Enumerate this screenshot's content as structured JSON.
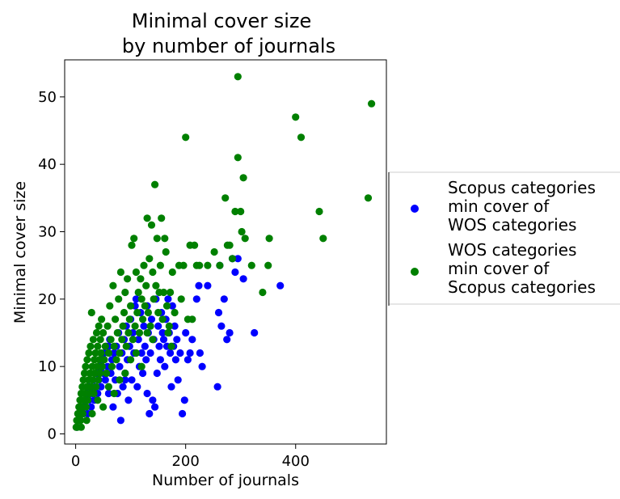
{
  "chart_data": {
    "type": "scatter",
    "title_lines": [
      "Minimal cover size",
      "by number of journals"
    ],
    "xlabel": "Number of journals",
    "ylabel": "Minimal cover size",
    "xlim": [
      -20,
      565
    ],
    "ylim": [
      -1.5,
      55.5
    ],
    "xticks": [
      0,
      200,
      400
    ],
    "yticks": [
      0,
      10,
      20,
      30,
      40,
      50
    ],
    "grid": false,
    "legend_position": "right-outside",
    "series": [
      {
        "name_lines": [
          "Scopus categories",
          "min cover of",
          "WOS categories"
        ],
        "color": "#0000ff",
        "points": [
          [
            2,
            1
          ],
          [
            4,
            2
          ],
          [
            6,
            3
          ],
          [
            8,
            2
          ],
          [
            10,
            3
          ],
          [
            12,
            4
          ],
          [
            14,
            3
          ],
          [
            16,
            5
          ],
          [
            18,
            4
          ],
          [
            20,
            6
          ],
          [
            22,
            3
          ],
          [
            24,
            5
          ],
          [
            26,
            7
          ],
          [
            28,
            4
          ],
          [
            30,
            6
          ],
          [
            32,
            8
          ],
          [
            34,
            5
          ],
          [
            36,
            7
          ],
          [
            38,
            9
          ],
          [
            40,
            6
          ],
          [
            42,
            8
          ],
          [
            44,
            10
          ],
          [
            46,
            7
          ],
          [
            48,
            11
          ],
          [
            50,
            9
          ],
          [
            52,
            12
          ],
          [
            54,
            8
          ],
          [
            56,
            13
          ],
          [
            58,
            10
          ],
          [
            60,
            6
          ],
          [
            62,
            14
          ],
          [
            64,
            9
          ],
          [
            66,
            11
          ],
          [
            68,
            4
          ],
          [
            70,
            12
          ],
          [
            72,
            8
          ],
          [
            74,
            13
          ],
          [
            76,
            6
          ],
          [
            78,
            15
          ],
          [
            80,
            10
          ],
          [
            82,
            2
          ],
          [
            84,
            12
          ],
          [
            86,
            7
          ],
          [
            88,
            14
          ],
          [
            90,
            9
          ],
          [
            92,
            16
          ],
          [
            94,
            11
          ],
          [
            96,
            5
          ],
          [
            98,
            13
          ],
          [
            100,
            17
          ],
          [
            102,
            8
          ],
          [
            104,
            15
          ],
          [
            106,
            12
          ],
          [
            108,
            19
          ],
          [
            110,
            20
          ],
          [
            112,
            7
          ],
          [
            114,
            14
          ],
          [
            116,
            10
          ],
          [
            118,
            18
          ],
          [
            120,
            12
          ],
          [
            122,
            9
          ],
          [
            124,
            16
          ],
          [
            126,
            13
          ],
          [
            128,
            11
          ],
          [
            130,
            19
          ],
          [
            132,
            15
          ],
          [
            134,
            3
          ],
          [
            136,
            12
          ],
          [
            138,
            17
          ],
          [
            140,
            5
          ],
          [
            142,
            14
          ],
          [
            144,
            4
          ],
          [
            146,
            20
          ],
          [
            148,
            9
          ],
          [
            150,
            16
          ],
          [
            152,
            13
          ],
          [
            154,
            11
          ],
          [
            156,
            18
          ],
          [
            158,
            15
          ],
          [
            160,
            14
          ],
          [
            162,
            10
          ],
          [
            164,
            17
          ],
          [
            166,
            13
          ],
          [
            168,
            20
          ],
          [
            170,
            15
          ],
          [
            172,
            12
          ],
          [
            174,
            7
          ],
          [
            176,
            19
          ],
          [
            178,
            13
          ],
          [
            180,
            16
          ],
          [
            182,
            11
          ],
          [
            184,
            14
          ],
          [
            186,
            8
          ],
          [
            190,
            12
          ],
          [
            194,
            3
          ],
          [
            198,
            5
          ],
          [
            200,
            15
          ],
          [
            204,
            11
          ],
          [
            208,
            12
          ],
          [
            212,
            14
          ],
          [
            220,
            20
          ],
          [
            224,
            22
          ],
          [
            226,
            12
          ],
          [
            230,
            10
          ],
          [
            240,
            22
          ],
          [
            258,
            7
          ],
          [
            260,
            18
          ],
          [
            262,
            25
          ],
          [
            265,
            16
          ],
          [
            270,
            20
          ],
          [
            275,
            14
          ],
          [
            280,
            15
          ],
          [
            285,
            26
          ],
          [
            290,
            24
          ],
          [
            295,
            26
          ],
          [
            305,
            23
          ],
          [
            325,
            15
          ],
          [
            372,
            22
          ],
          [
            60,
            13
          ],
          [
            90,
            8
          ],
          [
            130,
            6
          ]
        ]
      },
      {
        "name_lines": [
          "WOS categories",
          "min cover of",
          "Scopus categories"
        ],
        "color": "#008000",
        "points": [
          [
            1,
            1
          ],
          [
            2,
            2
          ],
          [
            3,
            1
          ],
          [
            4,
            3
          ],
          [
            5,
            2
          ],
          [
            6,
            4
          ],
          [
            7,
            3
          ],
          [
            8,
            5
          ],
          [
            9,
            2
          ],
          [
            10,
            6
          ],
          [
            11,
            4
          ],
          [
            12,
            7
          ],
          [
            13,
            3
          ],
          [
            14,
            8
          ],
          [
            15,
            5
          ],
          [
            16,
            9
          ],
          [
            17,
            6
          ],
          [
            18,
            10
          ],
          [
            19,
            4
          ],
          [
            20,
            7
          ],
          [
            21,
            11
          ],
          [
            22,
            5
          ],
          [
            23,
            8
          ],
          [
            24,
            12
          ],
          [
            25,
            6
          ],
          [
            26,
            9
          ],
          [
            27,
            13
          ],
          [
            28,
            7
          ],
          [
            29,
            18
          ],
          [
            30,
            10
          ],
          [
            31,
            8
          ],
          [
            32,
            14
          ],
          [
            33,
            6
          ],
          [
            34,
            11
          ],
          [
            35,
            9
          ],
          [
            36,
            12
          ],
          [
            37,
            7
          ],
          [
            38,
            15
          ],
          [
            39,
            10
          ],
          [
            40,
            13
          ],
          [
            41,
            8
          ],
          [
            42,
            16
          ],
          [
            43,
            11
          ],
          [
            44,
            9
          ],
          [
            45,
            14
          ],
          [
            46,
            12
          ],
          [
            47,
            17
          ],
          [
            48,
            10
          ],
          [
            50,
            15
          ],
          [
            52,
            11
          ],
          [
            54,
            13
          ],
          [
            56,
            9
          ],
          [
            58,
            16
          ],
          [
            60,
            12
          ],
          [
            62,
            19
          ],
          [
            64,
            14
          ],
          [
            66,
            10
          ],
          [
            68,
            22
          ],
          [
            70,
            13
          ],
          [
            72,
            17
          ],
          [
            74,
            11
          ],
          [
            76,
            15
          ],
          [
            78,
            20
          ],
          [
            80,
            12
          ],
          [
            82,
            24
          ],
          [
            84,
            14
          ],
          [
            86,
            16
          ],
          [
            88,
            18
          ],
          [
            90,
            21
          ],
          [
            92,
            13
          ],
          [
            94,
            23
          ],
          [
            96,
            15
          ],
          [
            98,
            17
          ],
          [
            100,
            19
          ],
          [
            102,
            28
          ],
          [
            104,
            14
          ],
          [
            106,
            29
          ],
          [
            108,
            16
          ],
          [
            110,
            24
          ],
          [
            112,
            18
          ],
          [
            114,
            21
          ],
          [
            116,
            15
          ],
          [
            118,
            23
          ],
          [
            120,
            20
          ],
          [
            122,
            17
          ],
          [
            124,
            25
          ],
          [
            126,
            19
          ],
          [
            128,
            22
          ],
          [
            130,
            32
          ],
          [
            132,
            18
          ],
          [
            134,
            26
          ],
          [
            136,
            16
          ],
          [
            138,
            31
          ],
          [
            140,
            24
          ],
          [
            142,
            20
          ],
          [
            144,
            37
          ],
          [
            146,
            22
          ],
          [
            148,
            29
          ],
          [
            150,
            18
          ],
          [
            152,
            21
          ],
          [
            154,
            25
          ],
          [
            156,
            32
          ],
          [
            158,
            17
          ],
          [
            160,
            21
          ],
          [
            162,
            29
          ],
          [
            164,
            27
          ],
          [
            166,
            19
          ],
          [
            168,
            15
          ],
          [
            170,
            16
          ],
          [
            172,
            21
          ],
          [
            174,
            13
          ],
          [
            176,
            24
          ],
          [
            180,
            18
          ],
          [
            188,
            25
          ],
          [
            192,
            20
          ],
          [
            196,
            25
          ],
          [
            200,
            44
          ],
          [
            204,
            17
          ],
          [
            208,
            28
          ],
          [
            212,
            17
          ],
          [
            216,
            28
          ],
          [
            220,
            25
          ],
          [
            225,
            25
          ],
          [
            240,
            25
          ],
          [
            252,
            27
          ],
          [
            262,
            25
          ],
          [
            272,
            35
          ],
          [
            276,
            28
          ],
          [
            280,
            28
          ],
          [
            285,
            26
          ],
          [
            290,
            33
          ],
          [
            295,
            41
          ],
          [
            300,
            33
          ],
          [
            302,
            30
          ],
          [
            305,
            38
          ],
          [
            308,
            29
          ],
          [
            320,
            25
          ],
          [
            340,
            21
          ],
          [
            350,
            25
          ],
          [
            352,
            29
          ],
          [
            295,
            53
          ],
          [
            400,
            47
          ],
          [
            410,
            44
          ],
          [
            443,
            33
          ],
          [
            450,
            29
          ],
          [
            532,
            35
          ],
          [
            538,
            49
          ],
          [
            10,
            1
          ],
          [
            20,
            2
          ],
          [
            30,
            3
          ],
          [
            40,
            5
          ],
          [
            50,
            4
          ],
          [
            60,
            7
          ],
          [
            70,
            6
          ],
          [
            80,
            8
          ],
          [
            90,
            9
          ],
          [
            100,
            11
          ],
          [
            110,
            12
          ],
          [
            120,
            10
          ],
          [
            130,
            15
          ],
          [
            140,
            14
          ]
        ]
      }
    ]
  }
}
